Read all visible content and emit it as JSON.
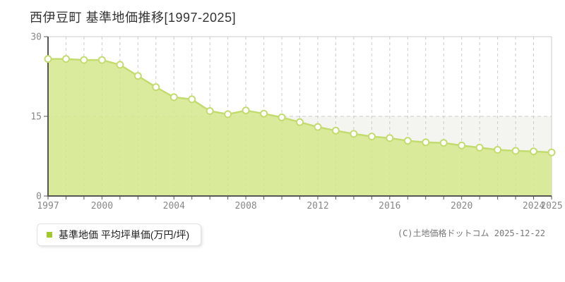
{
  "title": "西伊豆町 基準地価推移[1997-2025]",
  "legend": {
    "label": "基準地価 平均坪単価(万円/坪)"
  },
  "copyright": "(C)土地価格ドットコム 2025-12-22",
  "colors": {
    "legend_marker": "#a3c82d",
    "line": "#c3dc6f",
    "area_fill": "#d4e88c",
    "marker_fill": "#ffffff",
    "band": "#f4f4f0",
    "grid": "#cccccc",
    "border": "#cccccc",
    "axis": "#555555",
    "tick_text": "#888888"
  },
  "chart_data": {
    "type": "area",
    "title": "西伊豆町 基準地価推移[1997-2025]",
    "series_name": "基準地価 平均坪単価(万円/坪)",
    "xlabel": "",
    "ylabel": "平均坪単価(万円/坪)",
    "x": [
      1997,
      1998,
      1999,
      2000,
      2001,
      2002,
      2003,
      2004,
      2005,
      2006,
      2007,
      2008,
      2009,
      2010,
      2011,
      2012,
      2013,
      2014,
      2015,
      2016,
      2017,
      2018,
      2019,
      2020,
      2021,
      2022,
      2023,
      2024,
      2025
    ],
    "values": [
      25.8,
      25.8,
      25.6,
      25.6,
      24.7,
      22.6,
      20.5,
      18.6,
      18.2,
      16.0,
      15.4,
      16.1,
      15.5,
      14.8,
      13.9,
      13.0,
      12.3,
      11.7,
      11.2,
      10.9,
      10.4,
      10.1,
      10.0,
      9.5,
      9.1,
      8.7,
      8.5,
      8.4,
      8.2
    ],
    "ylim": [
      0,
      30
    ],
    "yticks": [
      0,
      15,
      30
    ],
    "xtick_labels": [
      "1997",
      "2000",
      "2004",
      "2008",
      "2012",
      "2016",
      "2020",
      "2024",
      "2025"
    ],
    "grid": "dashed vertical per year, dashed horizontal at 15",
    "legend_position": "bottom-left"
  }
}
